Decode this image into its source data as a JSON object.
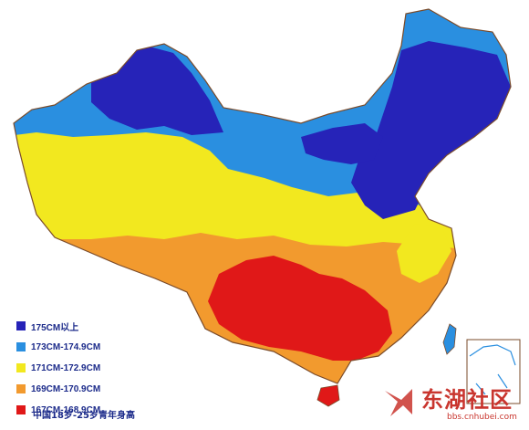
{
  "legend": {
    "items": [
      {
        "label": "175CM以上",
        "color": "#2623b8"
      },
      {
        "label": "173CM-174.9CM",
        "color": "#2a8fe0"
      },
      {
        "label": "171CM-172.9CM",
        "color": "#f2e81f"
      },
      {
        "label": "169CM-170.9CM",
        "color": "#f29a2e"
      },
      {
        "label": "167CM-168.9CM",
        "color": "#e01818"
      }
    ]
  },
  "caption": "中国18岁-25岁青年身高",
  "watermark": {
    "name": "东湖社区",
    "url": "bbs.cnhubei.com",
    "color": "#c9352e"
  },
  "map": {
    "background": "#ffffff",
    "border_color": "#7a4b2a"
  }
}
